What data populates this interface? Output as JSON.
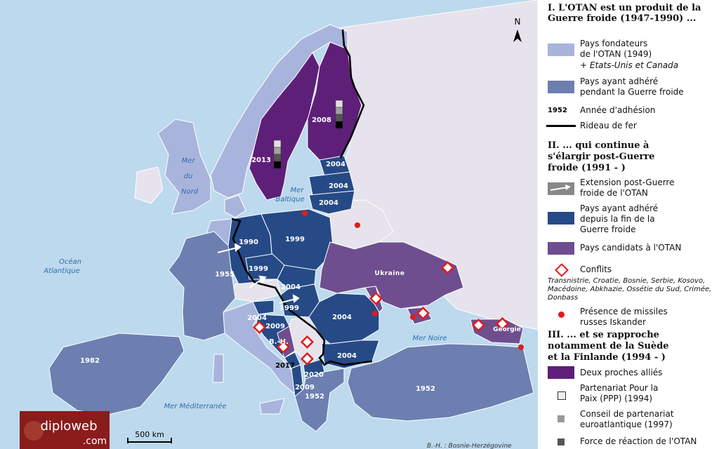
{
  "map": {
    "north": "N",
    "seas": {
      "nord": [
        "Mer",
        "du",
        "Nord"
      ],
      "baltique": [
        "Mer",
        "Baltique"
      ],
      "atlantique": [
        "Océan",
        "Atlantique"
      ],
      "noire": "Mer Noire",
      "mediterranee": "Mer Méditerranée"
    },
    "years": {
      "sweden": "2013",
      "finland": "2008",
      "estonia": "2004",
      "latvia": "2004",
      "lithuania": "2004",
      "germany": "1990",
      "poland": "1999",
      "czech": "1999",
      "slovakia": "2004",
      "hungary": "1999",
      "france": "1955",
      "romania": "2004",
      "bulgaria": "2004",
      "slovenia": "2004",
      "croatia": "2009",
      "montenegro": "2017",
      "macedonia": "2020",
      "albania": "2009",
      "greece": "1952",
      "turkey": "1952",
      "spain": "1982"
    },
    "countries": {
      "ukraine": "Ukraine",
      "georgia": "Géorgie",
      "bh": "B.-H."
    },
    "scale": "500 km",
    "logo": {
      "main": "diploweb",
      "sub": ".com"
    },
    "footnote": "B.-H. : Bosnie-Herzégovine"
  },
  "legend": {
    "s1_title": "I. L'OTAN est un produit de la Guerre froide (1947-1990) ...",
    "founders_1": "Pays fondateurs",
    "founders_2": "de l'OTAN (1949)",
    "founders_3": "+ Etats-Unis et Canada",
    "cold_war_1": "Pays ayant adhéré",
    "cold_war_2": "pendant la Guerre froide",
    "year_sample": "1952",
    "year_label": "Année d'adhésion",
    "curtain": "Rideau de fer",
    "s2_title_1": "II. ... qui continue à",
    "s2_title_2": "s'élargir post-Guerre",
    "s2_title_3": "froide (1991 - )",
    "extension_1": "Extension post-Guerre",
    "extension_2": "froide de l'OTAN",
    "post_1": "Pays ayant adhéré",
    "post_2": "depuis la fin de la",
    "post_3": "Guerre froide",
    "candidates": "Pays candidats à l'OTAN",
    "conflicts": "Conflits",
    "conflicts_list": "Transnistrie, Croatie, Bosnie, Serbie, Kosovo, Macédoine, Abkhazie, Ossétie du Sud, Crimée, Donbass",
    "missiles_1": "Présence de missiles",
    "missiles_2": "russes Iskander",
    "s3_title_1": "III. ... et se rapproche",
    "s3_title_2": "notamment de la Suède",
    "s3_title_3": "et la Finlande (1994 - )",
    "allies": "Deux proches alliés",
    "ppp_1": "Partenariat Pour la",
    "ppp_2": "Paix (PPP) (1994)",
    "council_1": "Conseil de partenariat",
    "council_2": "euroatlantique (1997)",
    "force": "Force de réaction de l'OTAN",
    "colors": {
      "founders": "#a9b4dc",
      "cold_war": "#6c7fb0",
      "post_cold_war": "#264a86",
      "candidates": "#6e4e8e",
      "allies": "#5e1f78",
      "sea": "#bcd9ee",
      "nonnato": "#e6e3ec",
      "conflict": "#e31a1c"
    }
  }
}
